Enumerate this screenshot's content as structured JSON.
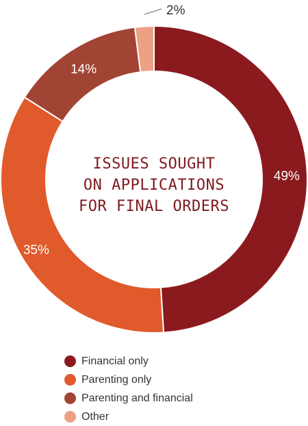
{
  "chart_data": {
    "type": "pie",
    "subtype": "donut",
    "title": "ISSUES SOUGHT ON APPLICATIONS FOR FINAL ORDERS",
    "categories": [
      "Financial only",
      "Parenting only",
      "Parenting and financial",
      "Other"
    ],
    "values": [
      49,
      35,
      14,
      2
    ],
    "labels": [
      "49%",
      "35%",
      "14%",
      "2%"
    ],
    "unit": "%",
    "colors": [
      "#8b1a1f",
      "#e05a2b",
      "#a24433",
      "#eda183"
    ],
    "legend_position": "bottom"
  },
  "center_title_lines": [
    "ISSUES SOUGHT",
    "ON APPLICATIONS",
    "FOR FINAL ORDERS"
  ]
}
